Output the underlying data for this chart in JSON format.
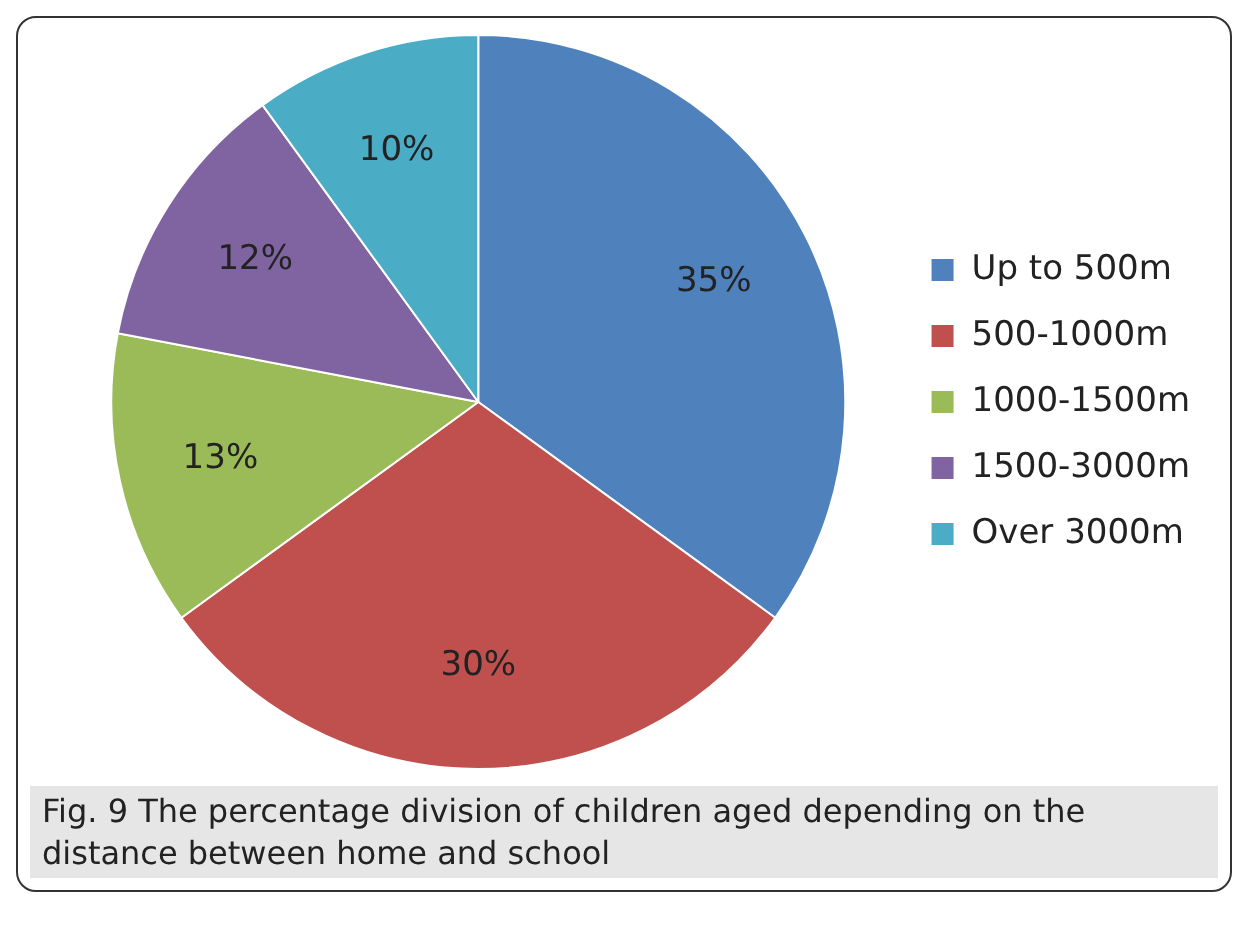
{
  "chart_data": {
    "type": "pie",
    "categories": [
      "Up to 500m",
      "500-1000m",
      "1000-1500m",
      "1500-3000m",
      "Over 3000m"
    ],
    "values": [
      35,
      30,
      13,
      12,
      10
    ],
    "colors": [
      "#4f81bd",
      "#c0504d",
      "#9bbb59",
      "#8064a2",
      "#4bacc6"
    ],
    "value_labels": [
      "35%",
      "30%",
      "13%",
      "12%",
      "10%"
    ],
    "legend": "right",
    "annotations": [
      "Fig. 9 The percentage division of children aged depending on the distance between home and school"
    ]
  }
}
